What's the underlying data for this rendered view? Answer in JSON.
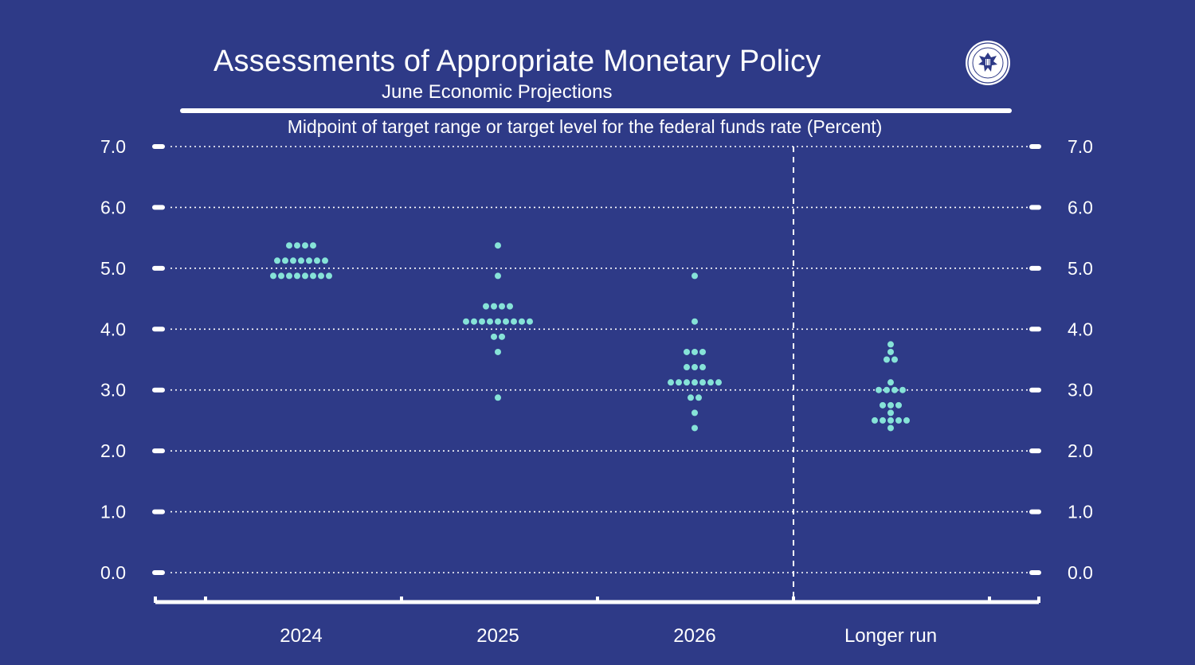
{
  "header": {
    "title": "Assessments of Appropriate Monetary Policy",
    "subtitle": "June Economic Projections"
  },
  "colors": {
    "background": "#2E3A87",
    "dots": "#86E3D8",
    "text": "#FFFFFF"
  },
  "icons": {
    "seal": "federal-reserve-seal-icon"
  },
  "chart_data": {
    "type": "scatter",
    "title": "Midpoint of target range or target level for the federal funds rate (Percent)",
    "categories": [
      "2024",
      "2025",
      "2026",
      "Longer run"
    ],
    "ylim": [
      0,
      7
    ],
    "yticks": [
      "0.0",
      "1.0",
      "2.0",
      "3.0",
      "4.0",
      "5.0",
      "6.0",
      "7.0"
    ],
    "grid": true,
    "separator_before": "Longer run",
    "series": [
      {
        "category": "2024",
        "dots": [
          {
            "y": 5.375,
            "count": 4
          },
          {
            "y": 5.125,
            "count": 7
          },
          {
            "y": 4.875,
            "count": 8
          }
        ]
      },
      {
        "category": "2025",
        "dots": [
          {
            "y": 5.375,
            "count": 1
          },
          {
            "y": 4.875,
            "count": 1
          },
          {
            "y": 4.375,
            "count": 4
          },
          {
            "y": 4.125,
            "count": 9
          },
          {
            "y": 3.875,
            "count": 2
          },
          {
            "y": 3.625,
            "count": 1
          },
          {
            "y": 2.875,
            "count": 1
          }
        ]
      },
      {
        "category": "2026",
        "dots": [
          {
            "y": 4.875,
            "count": 1
          },
          {
            "y": 4.125,
            "count": 1
          },
          {
            "y": 3.625,
            "count": 3
          },
          {
            "y": 3.375,
            "count": 3
          },
          {
            "y": 3.125,
            "count": 7
          },
          {
            "y": 2.875,
            "count": 2
          },
          {
            "y": 2.625,
            "count": 1
          },
          {
            "y": 2.375,
            "count": 1
          }
        ]
      },
      {
        "category": "Longer run",
        "dots": [
          {
            "y": 3.75,
            "count": 1
          },
          {
            "y": 3.625,
            "count": 1
          },
          {
            "y": 3.5,
            "count": 2
          },
          {
            "y": 3.125,
            "count": 1
          },
          {
            "y": 3.0,
            "count": 4
          },
          {
            "y": 2.75,
            "count": 3
          },
          {
            "y": 2.625,
            "count": 1
          },
          {
            "y": 2.5,
            "count": 5
          },
          {
            "y": 2.375,
            "count": 1
          }
        ]
      }
    ]
  }
}
